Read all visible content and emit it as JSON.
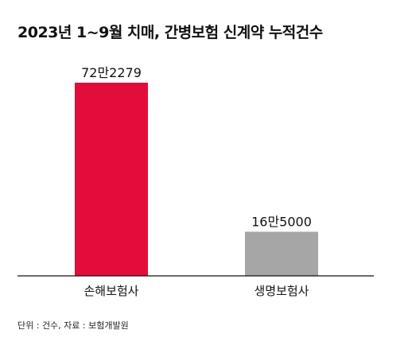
{
  "chart_data": {
    "type": "bar",
    "title": "2023년 1~9월 치매, 간병보험 신계약 누적건수",
    "categories": [
      "손해보험사",
      "생명보험사"
    ],
    "values": [
      722279,
      165000
    ],
    "value_labels": [
      "72만2279",
      "16만5000"
    ],
    "colors": [
      "#e30d3c",
      "#a6a6a6"
    ],
    "axis_color": "#111111",
    "ylim": [
      0,
      722279
    ],
    "grid": false,
    "legend": "none",
    "xlabel": "",
    "ylabel": ""
  },
  "footnote": "단위 : 건수, 자료 : 보험개발원"
}
